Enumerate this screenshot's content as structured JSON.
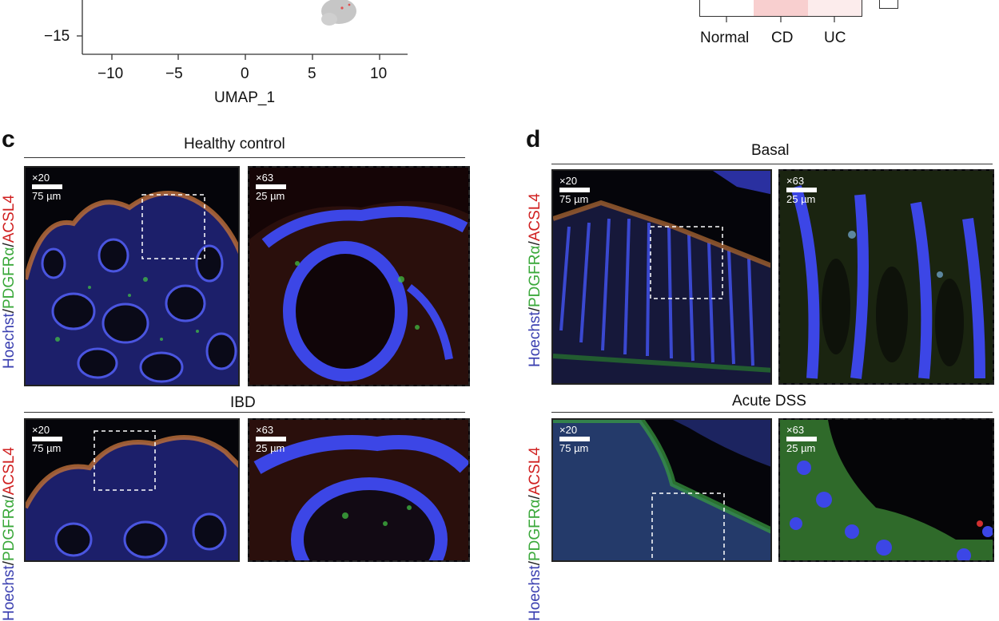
{
  "umap": {
    "y_tick": "−15",
    "x_ticks": [
      "−10",
      "−5",
      "0",
      "5",
      "10"
    ],
    "x_label": "UMAP_1"
  },
  "heatmap": {
    "categories": [
      "Normal",
      "CD",
      "UC"
    ],
    "colors": [
      "#ffffff",
      "#f8cfcf",
      "#fcecec"
    ]
  },
  "panel_c": {
    "letter": "c",
    "rows": [
      {
        "title": "Healthy control"
      },
      {
        "title": "IBD"
      }
    ]
  },
  "panel_d": {
    "letter": "d",
    "rows": [
      {
        "title": "Basal"
      },
      {
        "title": "Acute DSS"
      }
    ]
  },
  "stain_label": {
    "part1": "Hoechst",
    "sep1": "/",
    "part2": "PDGFRα",
    "sep2": "/",
    "part3": "ACSL4"
  },
  "scale": {
    "low_mag": "×20",
    "low_len": "75 µm",
    "high_mag": "×63",
    "high_len": "25 µm"
  }
}
